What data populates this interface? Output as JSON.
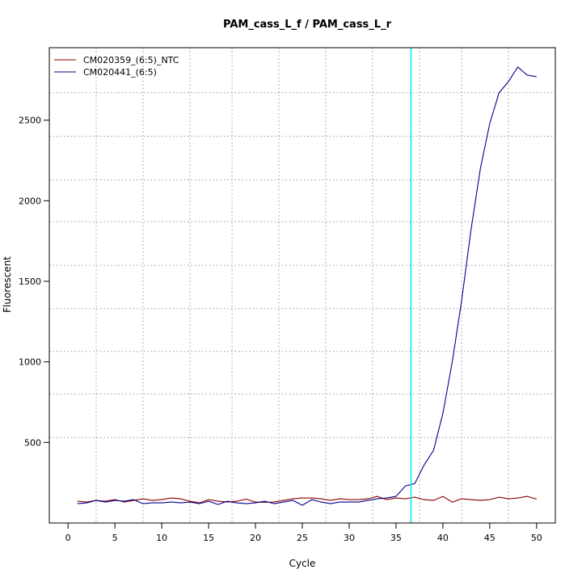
{
  "chart_data": {
    "type": "line",
    "title": "PAM_cass_L_f / PAM_cass_L_r",
    "xlabel": "Cycle",
    "ylabel": "Fluorescent",
    "xlim": [
      -2,
      52
    ],
    "ylim": [
      0,
      2950
    ],
    "x_ticks": [
      0,
      5,
      10,
      15,
      20,
      25,
      30,
      35,
      40,
      45,
      50
    ],
    "y_ticks": [
      500,
      1000,
      1500,
      2000,
      2500
    ],
    "v_grid": [
      3,
      8,
      13,
      17.5,
      22.5,
      27.5,
      32.5,
      37.5,
      42,
      47
    ],
    "h_grid": [
      530,
      800,
      1065,
      1330,
      1600,
      1870,
      2130,
      2400,
      2670
    ],
    "grid": true,
    "legend_position": "top-left",
    "threshold_line": {
      "x": 36.6,
      "color": "#00e5ee"
    },
    "series": [
      {
        "name": "CM020359_(6:5)_NTC",
        "color": "#8b0000",
        "x": [
          1,
          2,
          3,
          4,
          5,
          6,
          7,
          8,
          9,
          10,
          11,
          12,
          13,
          14,
          15,
          16,
          17,
          18,
          19,
          20,
          21,
          22,
          23,
          24,
          25,
          26,
          27,
          28,
          29,
          30,
          31,
          32,
          33,
          34,
          35,
          36,
          37,
          38,
          39,
          40,
          41,
          42,
          43,
          44,
          45,
          46,
          47,
          48,
          49,
          50
        ],
        "y": [
          135,
          130,
          140,
          135,
          145,
          130,
          140,
          150,
          140,
          145,
          155,
          150,
          135,
          125,
          145,
          135,
          130,
          135,
          148,
          130,
          128,
          130,
          140,
          150,
          155,
          155,
          150,
          140,
          150,
          145,
          145,
          150,
          165,
          145,
          155,
          150,
          160,
          145,
          140,
          165,
          130,
          150,
          145,
          140,
          145,
          160,
          150,
          155,
          165,
          148
        ]
      },
      {
        "name": "CM020441_(6:5)",
        "color": "#00008b",
        "x": [
          1,
          2,
          3,
          4,
          5,
          6,
          7,
          8,
          9,
          10,
          11,
          12,
          13,
          14,
          15,
          16,
          17,
          18,
          19,
          20,
          21,
          22,
          23,
          24,
          25,
          26,
          27,
          28,
          29,
          30,
          31,
          32,
          33,
          34,
          35,
          36,
          37,
          38,
          39,
          40,
          41,
          42,
          43,
          44,
          45,
          46,
          47,
          48,
          49,
          50
        ],
        "y": [
          120,
          125,
          140,
          130,
          140,
          135,
          145,
          120,
          125,
          125,
          130,
          125,
          130,
          120,
          135,
          115,
          135,
          125,
          120,
          125,
          135,
          120,
          130,
          140,
          110,
          145,
          130,
          120,
          130,
          130,
          130,
          140,
          150,
          155,
          165,
          230,
          245,
          360,
          450,
          680,
          1000,
          1380,
          1820,
          2200,
          2480,
          2670,
          2740,
          2830,
          2780,
          2770
        ]
      }
    ]
  }
}
